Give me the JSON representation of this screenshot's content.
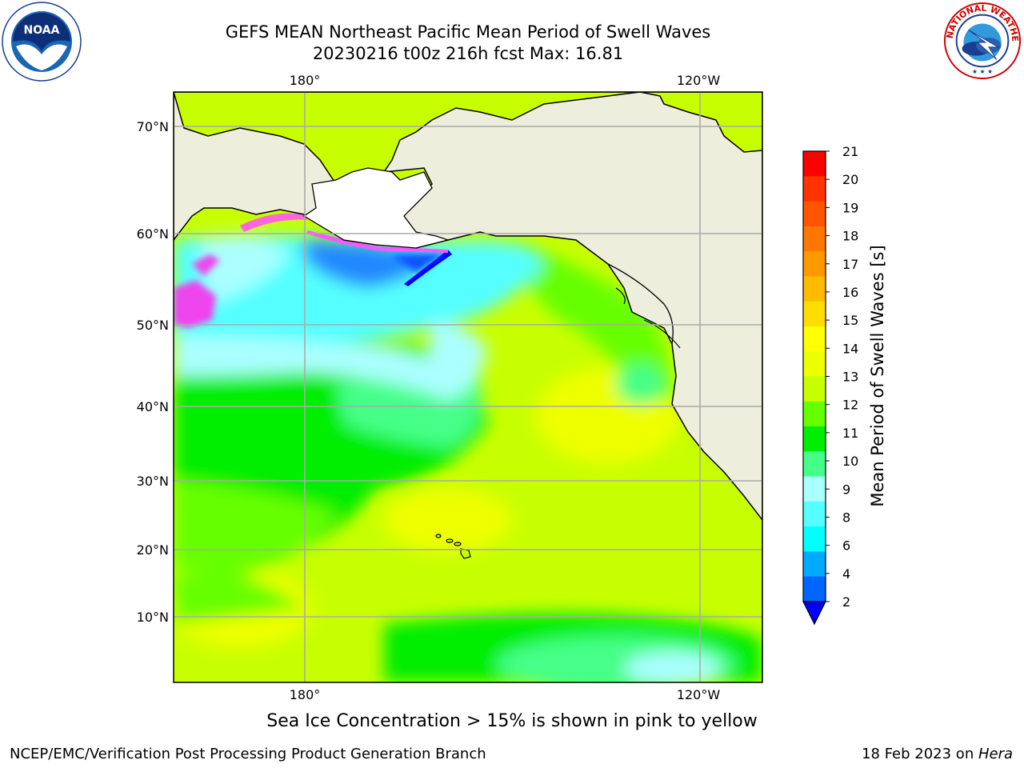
{
  "header": {
    "title_line1": "GEFS MEAN Northeast Pacific Mean Period of Swell Waves",
    "title_line2": "20230216 t00z 216h fcst   Max: 16.81"
  },
  "logos": {
    "left": "noaa-logo",
    "left_text": "NOAA",
    "right": "nws-logo",
    "right_text": "NATIONAL WEATHER SERVICE"
  },
  "map": {
    "lon_labels_top": [
      "180°",
      "120°W"
    ],
    "lon_labels_bottom": [
      "180°",
      "120°W"
    ],
    "lat_labels": [
      "70°N",
      "60°N",
      "50°N",
      "40°N",
      "30°N",
      "20°N",
      "10°N"
    ],
    "ocean_dominant": "#c8ff00",
    "land_color": "#eeeedd"
  },
  "colorbar": {
    "label": "Mean Period of Swell Waves [s]",
    "ticks": [
      "21",
      "20",
      "19",
      "18",
      "17",
      "16",
      "15",
      "14",
      "13",
      "12",
      "11",
      "10",
      "9",
      "8",
      "6",
      "4",
      "2"
    ],
    "colors": [
      "#ff0000",
      "#ff3300",
      "#ff5500",
      "#ff7700",
      "#ff9900",
      "#ffbb00",
      "#ffdd00",
      "#ffff00",
      "#eeff00",
      "#c8ff00",
      "#66ff00",
      "#00ee00",
      "#44ff88",
      "#aaffff",
      "#55ffff",
      "#00ffff",
      "#00aaff",
      "#0066ff"
    ],
    "extend_color": "#0000ff"
  },
  "footer": {
    "note": "Sea Ice Concentration > 15% is shown in pink to yellow",
    "left": "NCEP/EMC/Verification Post Processing Product Generation Branch",
    "right_prefix": "18 Feb 2023 on ",
    "right_host": "Hera"
  }
}
